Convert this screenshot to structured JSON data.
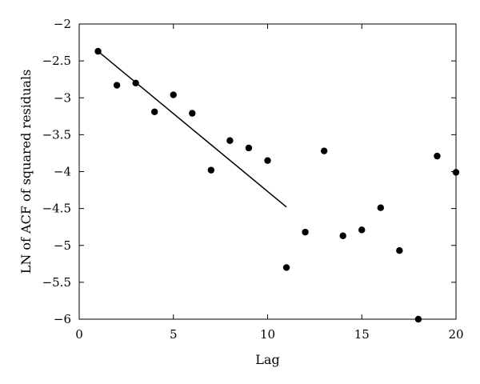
{
  "chart_data": {
    "type": "scatter",
    "xlabel": "Lag",
    "ylabel": "LN of ACF of squared residuals",
    "xlim": [
      0,
      20
    ],
    "ylim": [
      -6,
      -2
    ],
    "xticks": [
      0,
      5,
      10,
      15,
      20
    ],
    "yticks": [
      -6,
      -5.5,
      -5,
      -4.5,
      -4,
      -3.5,
      -3,
      -2.5,
      -2
    ],
    "grid": false,
    "legend": "none",
    "series": [
      {
        "type": "scatter",
        "color": "#000000",
        "points": [
          {
            "x": 1,
            "y": -2.37
          },
          {
            "x": 2,
            "y": -2.83
          },
          {
            "x": 3,
            "y": -2.8
          },
          {
            "x": 4,
            "y": -3.19
          },
          {
            "x": 5,
            "y": -2.96
          },
          {
            "x": 6,
            "y": -3.21
          },
          {
            "x": 7,
            "y": -3.98
          },
          {
            "x": 8,
            "y": -3.58
          },
          {
            "x": 9,
            "y": -3.68
          },
          {
            "x": 10,
            "y": -3.85
          },
          {
            "x": 11,
            "y": -5.3
          },
          {
            "x": 12,
            "y": -4.82
          },
          {
            "x": 13,
            "y": -3.72
          },
          {
            "x": 14,
            "y": -4.87
          },
          {
            "x": 15,
            "y": -4.79
          },
          {
            "x": 16,
            "y": -4.49
          },
          {
            "x": 17,
            "y": -5.07
          },
          {
            "x": 18,
            "y": -6.0
          },
          {
            "x": 19,
            "y": -3.79
          },
          {
            "x": 20,
            "y": -4.01
          }
        ]
      },
      {
        "type": "line",
        "color": "#000000",
        "points": [
          {
            "x": 1,
            "y": -2.37
          },
          {
            "x": 11,
            "y": -4.48
          }
        ]
      }
    ]
  }
}
